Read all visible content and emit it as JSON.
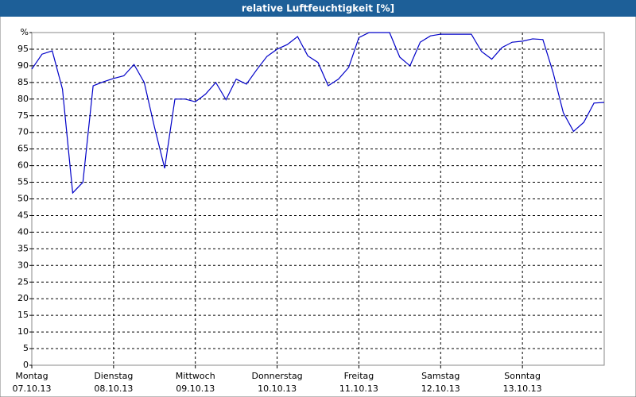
{
  "chart_data": {
    "type": "line",
    "title": "relative Luftfeuchtigkeit [%]",
    "xlim": [
      0,
      168
    ],
    "xticks": [
      {
        "value": 0,
        "label": "Montag",
        "sublabel": "07.10.13"
      },
      {
        "value": 24,
        "label": "Dienstag",
        "sublabel": "08.10.13"
      },
      {
        "value": 48,
        "label": "Mittwoch",
        "sublabel": "09.10.13"
      },
      {
        "value": 72,
        "label": "Donnerstag",
        "sublabel": "10.10.13"
      },
      {
        "value": 96,
        "label": "Freitag",
        "sublabel": "11.10.13"
      },
      {
        "value": 120,
        "label": "Samstag",
        "sublabel": "12.10.13"
      },
      {
        "value": 144,
        "label": "Sonntag",
        "sublabel": "13.10.13"
      }
    ],
    "ylim": [
      0,
      100
    ],
    "yticks": [
      0,
      5,
      10,
      15,
      20,
      25,
      30,
      35,
      40,
      45,
      50,
      55,
      60,
      65,
      70,
      75,
      80,
      85,
      90,
      95,
      {
        "value": 100,
        "label": "%"
      }
    ],
    "grid": true,
    "series": [
      {
        "color": "#0000c8",
        "x": [
          0,
          3,
          6,
          9,
          12,
          15,
          18,
          21,
          24,
          27,
          30,
          33,
          36,
          39,
          42,
          45,
          48,
          51,
          54,
          57,
          60,
          63,
          66,
          69,
          72,
          75,
          78,
          81,
          84,
          87,
          90,
          93,
          96,
          99,
          102,
          105,
          108,
          111,
          114,
          117,
          120,
          123,
          126,
          129,
          132,
          135,
          138,
          141,
          144,
          147,
          150,
          153,
          156,
          159,
          162,
          165,
          168
        ],
        "values": [
          89,
          93.5,
          94.5,
          83,
          51.8,
          55,
          84,
          85.2,
          86.2,
          87,
          90.4,
          85,
          71.6,
          59.2,
          80,
          80,
          79.2,
          81.5,
          85,
          79.8,
          86,
          84.5,
          88.8,
          92.8,
          95,
          96.4,
          98.8,
          93,
          91,
          84,
          86,
          89.5,
          98.5,
          100,
          100,
          100,
          92.6,
          90,
          97.1,
          99,
          99.5,
          99.5,
          99.5,
          99.5,
          94.3,
          92,
          95.5,
          97.1,
          97.4,
          98.1,
          97.9,
          88,
          75.9,
          70.3,
          73,
          78.8,
          79
        ]
      }
    ]
  }
}
